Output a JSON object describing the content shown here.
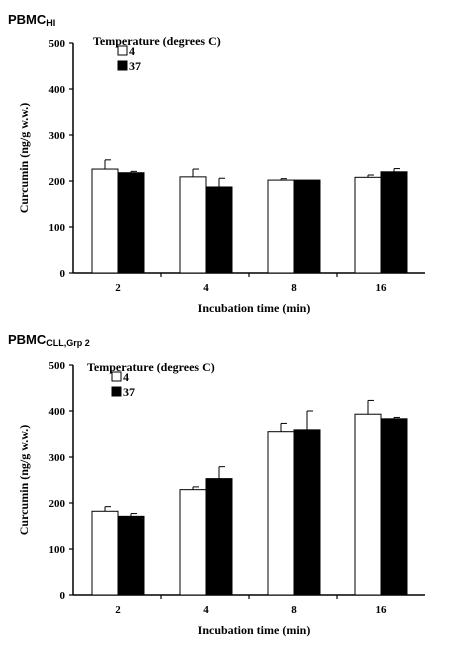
{
  "chart_data": [
    {
      "type": "bar",
      "panel_title": "PBMC",
      "panel_subscript": "HI",
      "categories": [
        "2",
        "4",
        "8",
        "16"
      ],
      "series": [
        {
          "name": "4",
          "values": [
            226,
            209,
            202,
            208
          ],
          "errors": [
            20,
            17,
            3,
            5
          ],
          "color": "#ffffff"
        },
        {
          "name": "37",
          "values": [
            218,
            187,
            202,
            220
          ],
          "errors": [
            3,
            19,
            0,
            7
          ],
          "color": "#000000"
        }
      ],
      "xlabel": "Incubation time (min)",
      "ylabel": "Curcumin (ng/g w.w.)",
      "ylim": [
        0,
        500
      ],
      "yticks": [
        "0",
        "100",
        "200",
        "300",
        "400",
        "500"
      ],
      "legend_title": "Temperature (degrees C)",
      "legend_placement": "top-left",
      "grid": false
    },
    {
      "type": "bar",
      "panel_title": "PBMC",
      "panel_subscript": "CLL,Grp 2",
      "categories": [
        "2",
        "4",
        "8",
        "16"
      ],
      "series": [
        {
          "name": "4",
          "values": [
            182,
            229,
            355,
            393
          ],
          "errors": [
            10,
            6,
            18,
            30
          ],
          "color": "#ffffff"
        },
        {
          "name": "37",
          "values": [
            171,
            253,
            359,
            383
          ],
          "errors": [
            6,
            26,
            41,
            3
          ],
          "color": "#000000"
        }
      ],
      "xlabel": "Incubation time (min)",
      "ylabel": "Curcumin (ng/g w.w.)",
      "ylim": [
        0,
        500
      ],
      "yticks": [
        "0",
        "100",
        "200",
        "300",
        "400",
        "500"
      ],
      "legend_title": "Temperature (degrees C)",
      "legend_placement": "top-left",
      "grid": false
    }
  ]
}
